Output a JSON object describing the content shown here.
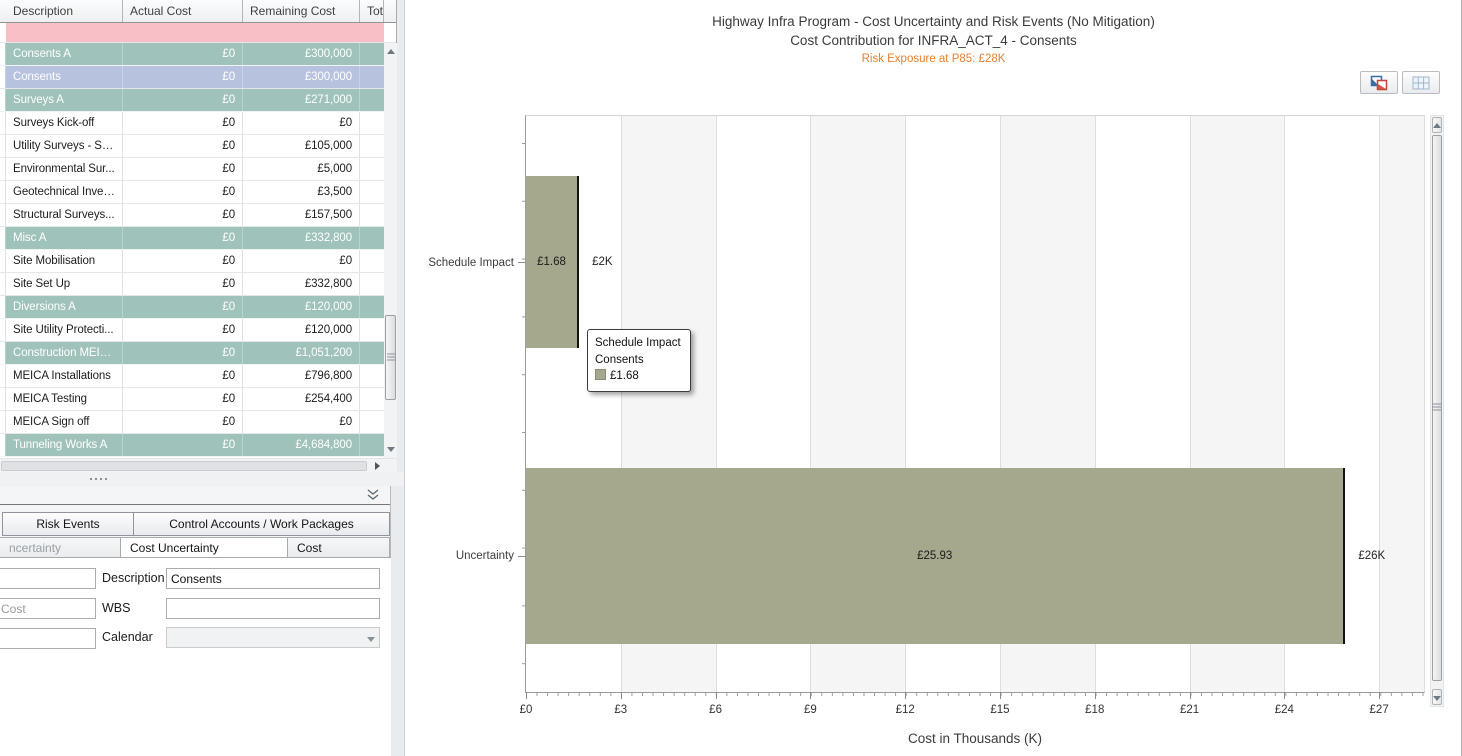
{
  "left_panel": {
    "table": {
      "columns": [
        "Description",
        "Actual Cost",
        "Remaining Cost",
        "Tot"
      ],
      "rows": [
        {
          "description": "Consents A",
          "actual": "£0",
          "remaining": "£300,000",
          "type": "summary"
        },
        {
          "description": "Consents",
          "actual": "£0",
          "remaining": "£300,000",
          "type": "selected"
        },
        {
          "description": "Surveys A",
          "actual": "£0",
          "remaining": "£271,000",
          "type": "summary"
        },
        {
          "description": "Surveys Kick-off",
          "actual": "£0",
          "remaining": "£0",
          "type": "normal"
        },
        {
          "description": "Utility Surveys - Sc...",
          "actual": "£0",
          "remaining": "£105,000",
          "type": "normal"
        },
        {
          "description": "Environmental Sur...",
          "actual": "£0",
          "remaining": "£5,000",
          "type": "normal"
        },
        {
          "description": "Geotechnical Inves...",
          "actual": "£0",
          "remaining": "£3,500",
          "type": "normal"
        },
        {
          "description": "Structural Surveys...",
          "actual": "£0",
          "remaining": "£157,500",
          "type": "normal"
        },
        {
          "description": "Misc A",
          "actual": "£0",
          "remaining": "£332,800",
          "type": "summary"
        },
        {
          "description": "Site Mobilisation",
          "actual": "£0",
          "remaining": "£0",
          "type": "normal"
        },
        {
          "description": "Site Set Up",
          "actual": "£0",
          "remaining": "£332,800",
          "type": "normal"
        },
        {
          "description": "Diversions A",
          "actual": "£0",
          "remaining": "£120,000",
          "type": "summary"
        },
        {
          "description": "Site Utility Protecti...",
          "actual": "£0",
          "remaining": "£120,000",
          "type": "normal"
        },
        {
          "description": "Construction MEIC...",
          "actual": "£0",
          "remaining": "£1,051,200",
          "type": "summary"
        },
        {
          "description": "MEICA Installations",
          "actual": "£0",
          "remaining": "£796,800",
          "type": "normal"
        },
        {
          "description": "MEICA Testing",
          "actual": "£0",
          "remaining": "£254,400",
          "type": "normal"
        },
        {
          "description": "MEICA Sign off",
          "actual": "£0",
          "remaining": "£0",
          "type": "normal"
        },
        {
          "description": "Tunneling Works A",
          "actual": "£0",
          "remaining": "£4,684,800",
          "type": "summary"
        }
      ],
      "row_colors": {
        "summary_bg": "#9fc2bb",
        "selected_bg": "#b6c2de",
        "filter_row_bg": "#f8bfc6"
      }
    },
    "details_pane": {
      "tabs_row1": [
        "Risk Events",
        "Control Accounts / Work Packages"
      ],
      "tabs_row2": [
        "ncertainty",
        "Cost Uncertainty",
        "Cost"
      ],
      "selected_tab": "Cost Uncertainty",
      "form": {
        "left_inputs": [
          {
            "value": ""
          },
          {
            "value": "Cost"
          },
          {
            "value": ""
          }
        ],
        "fields": [
          {
            "label": "Description",
            "value": "Consents"
          },
          {
            "label": "WBS",
            "value": ""
          },
          {
            "label": "Calendar",
            "value": ""
          }
        ]
      }
    }
  },
  "chart_data": {
    "type": "bar",
    "orientation": "horizontal",
    "title": "Highway Infra Program - Cost Uncertainty and Risk Events (No Mitigation)",
    "subtitle": "Cost Contribution for INFRA_ACT_4 - Consents",
    "annotation": "Risk Exposure at P85: £28K",
    "annotation_color": "#e8802e",
    "categories": [
      "Schedule Impact",
      "Uncertainty"
    ],
    "values": [
      1.68,
      25.93
    ],
    "bar_value_labels": [
      "£1.68",
      "£25.93"
    ],
    "bar_end_labels": [
      "£2K",
      "£26K"
    ],
    "bar_color": "#a6a88e",
    "xlabel": "Cost in Thousands (K)",
    "xlim": [
      0,
      28.42
    ],
    "x_ticks": [
      0,
      3,
      6,
      9,
      12,
      15,
      18,
      21,
      24,
      27
    ],
    "x_tick_labels": [
      "£0",
      "£3",
      "£6",
      "£9",
      "£12",
      "£15",
      "£18",
      "£21",
      "£24",
      "£27"
    ],
    "grid": true,
    "legend": false,
    "tooltip": {
      "line1": "Schedule Impact",
      "line2": "Consents",
      "value": "£1.68"
    }
  },
  "icons": {
    "toolbar": [
      "copy-chart-icon",
      "table-view-icon"
    ],
    "pane": [
      "collapse-chevron-icon"
    ]
  }
}
